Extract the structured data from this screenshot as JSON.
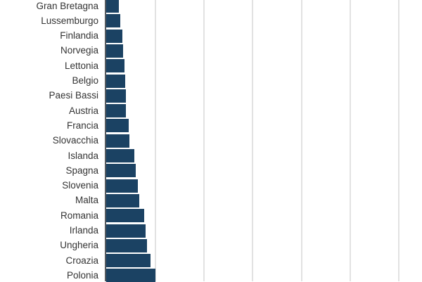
{
  "chart_data": {
    "type": "bar",
    "orientation": "horizontal",
    "title": "",
    "xlabel": "",
    "ylabel": "",
    "grid": true,
    "legend": null,
    "bar_color": "#1b4263",
    "categories": [
      "Gran Bretagna",
      "Lussemburgo",
      "Finlandia",
      "Norvegia",
      "Lettonia",
      "Belgio",
      "Paesi Bassi",
      "Austria",
      "Francia",
      "Slovacchia",
      "Islanda",
      "Spagna",
      "Slovenia",
      "Malta",
      "Romania",
      "Irlanda",
      "Ungheria",
      "Croazia",
      "Polonia"
    ],
    "values": [
      2.6,
      2.9,
      3.3,
      3.5,
      3.7,
      3.9,
      4.0,
      4.1,
      4.6,
      4.7,
      5.8,
      6.1,
      6.5,
      6.7,
      7.8,
      8.1,
      8.4,
      9.1,
      10.1
    ],
    "xlim": [
      0,
      60
    ],
    "gridline_step": 10
  }
}
